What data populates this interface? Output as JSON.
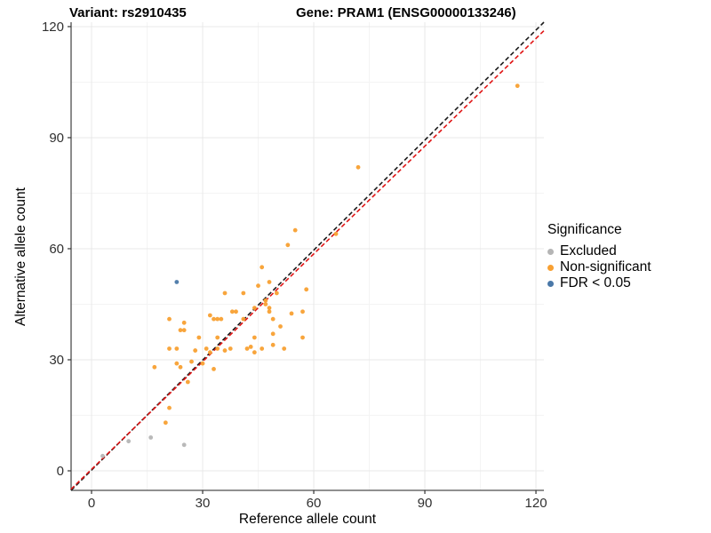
{
  "titles": {
    "variant": "Variant: rs2910435",
    "gene": "Gene: PRAM1 (ENSG00000133246)"
  },
  "legend": {
    "title": "Significance",
    "items": [
      {
        "label": "Excluded",
        "color": "#b5b5b5"
      },
      {
        "label": "Non-significant",
        "color": "#f8a032"
      },
      {
        "label": "FDR < 0.05",
        "color": "#4a78a8"
      }
    ]
  },
  "chart_data": {
    "type": "scatter",
    "title_left": "Variant: rs2910435",
    "title_right": "Gene: PRAM1 (ENSG00000133246)",
    "xlabel": "Reference allele count",
    "ylabel": "Alternative allele count",
    "xlim": [
      0,
      120
    ],
    "ylim": [
      0,
      120
    ],
    "x_ticks": [
      0,
      30,
      60,
      90,
      120
    ],
    "y_ticks": [
      0,
      30,
      60,
      90,
      120
    ],
    "x_minor_ticks": [
      15,
      45,
      75,
      105
    ],
    "y_minor_ticks": [
      15,
      45,
      75,
      105
    ],
    "grid": true,
    "legend_position": "right",
    "legend_title": "Significance",
    "series": [
      {
        "name": "Excluded",
        "color": "#b5b5b5",
        "points": [
          [
            3,
            4
          ],
          [
            10,
            8
          ],
          [
            16,
            9
          ],
          [
            25,
            7
          ]
        ]
      },
      {
        "name": "Non-significant",
        "color": "#f8a032",
        "points": [
          [
            115,
            104
          ],
          [
            72,
            82
          ],
          [
            66,
            64
          ],
          [
            55,
            65
          ],
          [
            53,
            61
          ],
          [
            46,
            55
          ],
          [
            58,
            49
          ],
          [
            48,
            51
          ],
          [
            45,
            50
          ],
          [
            50,
            48
          ],
          [
            41,
            48
          ],
          [
            36,
            48
          ],
          [
            47,
            46
          ],
          [
            47,
            45
          ],
          [
            48,
            44
          ],
          [
            48,
            43
          ],
          [
            44,
            44
          ],
          [
            54,
            42.5
          ],
          [
            57,
            43
          ],
          [
            32,
            42
          ],
          [
            38,
            43
          ],
          [
            39,
            43
          ],
          [
            21,
            41
          ],
          [
            25,
            40
          ],
          [
            33,
            41
          ],
          [
            34,
            41
          ],
          [
            35,
            41
          ],
          [
            41,
            41
          ],
          [
            49,
            41
          ],
          [
            51,
            39
          ],
          [
            24,
            38
          ],
          [
            25,
            38
          ],
          [
            29,
            36
          ],
          [
            34,
            36
          ],
          [
            44,
            36
          ],
          [
            49,
            37
          ],
          [
            57,
            36
          ],
          [
            21,
            33
          ],
          [
            23,
            33
          ],
          [
            28,
            32.5
          ],
          [
            31,
            33
          ],
          [
            32,
            32
          ],
          [
            34,
            33
          ],
          [
            36,
            32.5
          ],
          [
            37.5,
            33
          ],
          [
            42,
            33
          ],
          [
            43,
            33.5
          ],
          [
            44,
            32
          ],
          [
            46,
            33
          ],
          [
            49,
            34
          ],
          [
            52,
            33
          ],
          [
            17,
            28
          ],
          [
            23,
            29
          ],
          [
            24,
            28
          ],
          [
            27,
            29.5
          ],
          [
            30,
            29
          ],
          [
            33,
            27.5
          ],
          [
            26,
            24
          ],
          [
            21,
            17
          ],
          [
            20,
            13
          ]
        ]
      },
      {
        "name": "FDR < 0.05",
        "color": "#4a78a8",
        "points": [
          [
            23,
            51
          ]
        ]
      }
    ],
    "lines": [
      {
        "name": "identity-line",
        "slope": 1,
        "intercept": 0,
        "color": "#1a1a1a",
        "dashed": true
      },
      {
        "name": "fit-line",
        "slope": 0.97,
        "intercept": 0.4,
        "color": "#e01515",
        "dashed": true
      }
    ]
  }
}
